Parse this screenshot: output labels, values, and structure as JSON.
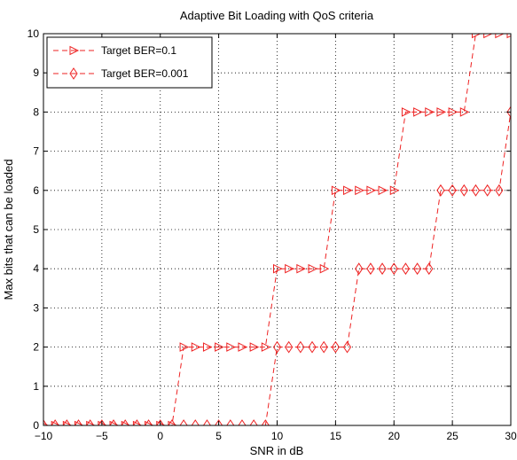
{
  "chart_data": {
    "type": "line",
    "title": "Adaptive Bit Loading with QoS criteria",
    "xlabel": "SNR in dB",
    "ylabel": "Max bits that can be loaded",
    "xlim": [
      -10,
      30
    ],
    "ylim": [
      0,
      10
    ],
    "xticks": [
      -10,
      -5,
      0,
      5,
      10,
      15,
      20,
      25,
      30
    ],
    "yticks": [
      0,
      1,
      2,
      3,
      4,
      5,
      6,
      7,
      8,
      9,
      10
    ],
    "grid": true,
    "legend_position": "top-left",
    "color": "#ee2222",
    "series": [
      {
        "name": "Target BER=0.1",
        "marker": "triangle-right",
        "line": "dashed",
        "x": [
          -10,
          -9,
          -8,
          -7,
          -6,
          -5,
          -4,
          -3,
          -2,
          -1,
          0,
          1,
          2,
          3,
          4,
          5,
          6,
          7,
          8,
          9,
          10,
          11,
          12,
          13,
          14,
          15,
          16,
          17,
          18,
          19,
          20,
          21,
          22,
          23,
          24,
          25,
          26,
          27,
          28,
          29,
          30
        ],
        "y": [
          0,
          0,
          0,
          0,
          0,
          0,
          0,
          0,
          0,
          0,
          0,
          0,
          2,
          2,
          2,
          2,
          2,
          2,
          2,
          2,
          4,
          4,
          4,
          4,
          4,
          6,
          6,
          6,
          6,
          6,
          6,
          8,
          8,
          8,
          8,
          8,
          8,
          10,
          10,
          10,
          10
        ]
      },
      {
        "name": "Target BER=0.001",
        "marker": "diamond",
        "line": "dashed",
        "x": [
          -10,
          -9,
          -8,
          -7,
          -6,
          -5,
          -4,
          -3,
          -2,
          -1,
          0,
          1,
          2,
          3,
          4,
          5,
          6,
          7,
          8,
          9,
          10,
          11,
          12,
          13,
          14,
          15,
          16,
          17,
          18,
          19,
          20,
          21,
          22,
          23,
          24,
          25,
          26,
          27,
          28,
          29,
          30
        ],
        "y": [
          0,
          0,
          0,
          0,
          0,
          0,
          0,
          0,
          0,
          0,
          0,
          0,
          0,
          0,
          0,
          0,
          0,
          0,
          0,
          0,
          2,
          2,
          2,
          2,
          2,
          2,
          2,
          4,
          4,
          4,
          4,
          4,
          4,
          4,
          6,
          6,
          6,
          6,
          6,
          6,
          8
        ]
      }
    ]
  }
}
